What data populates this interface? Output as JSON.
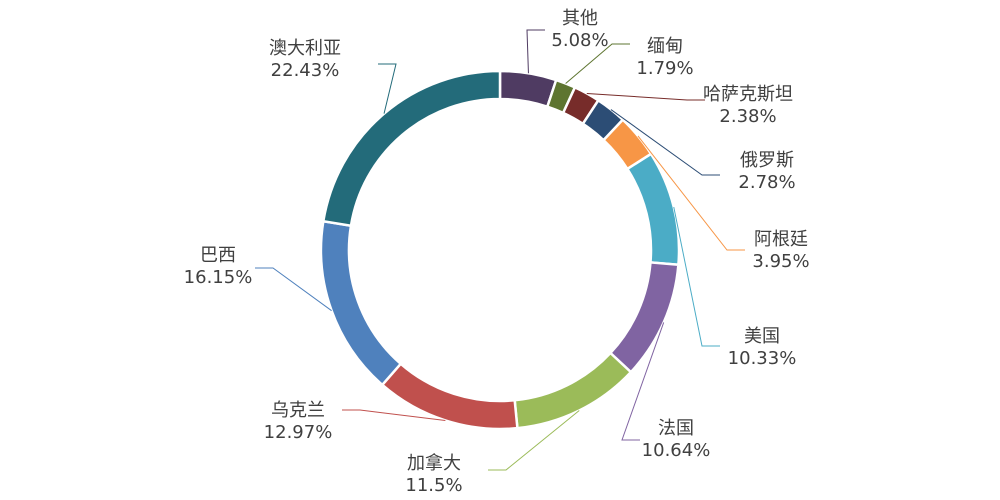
{
  "chart_data": {
    "type": "pie",
    "variant": "donut",
    "title": "",
    "slices": [
      {
        "name": "其他",
        "value": 5.08,
        "label": "5.08%",
        "color": "#4F3B62"
      },
      {
        "name": "缅甸",
        "value": 1.79,
        "label": "1.79%",
        "color": "#5E7530"
      },
      {
        "name": "哈萨克斯坦",
        "value": 2.38,
        "label": "2.38%",
        "color": "#772C2A"
      },
      {
        "name": "俄罗斯",
        "value": 2.78,
        "label": "2.78%",
        "color": "#2C4D75"
      },
      {
        "name": "阿根廷",
        "value": 3.95,
        "label": "3.95%",
        "color": "#F79646"
      },
      {
        "name": "美国",
        "value": 10.33,
        "label": "10.33%",
        "color": "#4BACC6"
      },
      {
        "name": "法国",
        "value": 10.64,
        "label": "10.64%",
        "color": "#8064A2"
      },
      {
        "name": "加拿大",
        "value": 11.5,
        "label": "11.5%",
        "color": "#9BBB59"
      },
      {
        "name": "乌克兰",
        "value": 12.97,
        "label": "12.97%",
        "color": "#C0504D"
      },
      {
        "name": "巴西",
        "value": 16.15,
        "label": "16.15%",
        "color": "#4F81BD"
      },
      {
        "name": "澳大利亚",
        "value": 22.43,
        "label": "22.43%",
        "color": "#236B7A"
      }
    ],
    "legend": "none"
  }
}
